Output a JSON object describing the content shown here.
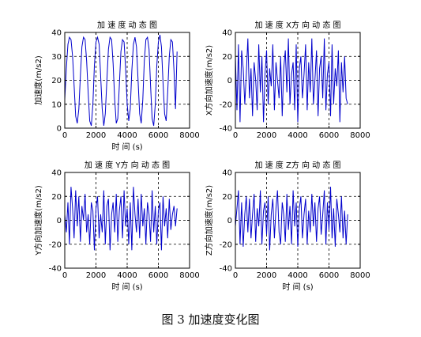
{
  "caption": "图 3  加速度变化图",
  "chart_data": [
    {
      "type": "line",
      "title": "加 速 度 动 态 图",
      "xlabel": "时 间 (s)",
      "ylabel": "加速度(m/s2)",
      "xlim": [
        0,
        8000
      ],
      "ylim": [
        0,
        40
      ],
      "xticks": [
        0,
        2000,
        4000,
        6000,
        8000
      ],
      "yticks": [
        0,
        10,
        20,
        30,
        40
      ],
      "grid": true,
      "line_color": "#0000cc",
      "series": [
        {
          "x": [
            0,
            100,
            200,
            300,
            400,
            500,
            600,
            700,
            800,
            900,
            1000,
            1100,
            1200,
            1300,
            1400,
            1500,
            1600,
            1700,
            1800,
            1900,
            2000,
            2100,
            2200,
            2300,
            2400,
            2500,
            2600,
            2700,
            2800,
            2900,
            3000,
            3100,
            3200,
            3300,
            3400,
            3500,
            3600,
            3700,
            3800,
            3900,
            4000,
            4100,
            4200,
            4300,
            4400,
            4500,
            4600,
            4700,
            4800,
            4900,
            5000,
            5100,
            5200,
            5300,
            5400,
            5500,
            5600,
            5700,
            5800,
            5900,
            6000,
            6100,
            6200,
            6300,
            6400,
            6500,
            6600,
            6700,
            6800,
            6900,
            7000,
            7100,
            7200
          ],
          "values": [
            12,
            25,
            35,
            38,
            37,
            30,
            18,
            5,
            2,
            8,
            22,
            34,
            38,
            37,
            28,
            15,
            3,
            1,
            10,
            26,
            36,
            38,
            35,
            22,
            8,
            1,
            6,
            20,
            33,
            38,
            37,
            27,
            12,
            2,
            4,
            18,
            32,
            37,
            36,
            25,
            10,
            3,
            8,
            24,
            35,
            38,
            34,
            20,
            6,
            2,
            12,
            28,
            37,
            38,
            33,
            18,
            4,
            1,
            10,
            26,
            36,
            39,
            34,
            19,
            6,
            3,
            15,
            30,
            37,
            36,
            24,
            8,
            32
          ]
        }
      ]
    },
    {
      "type": "line",
      "title": "加 速 度 X方 向 动 态 图",
      "xlabel": "",
      "ylabel": "X方向加速度(m/s2)",
      "xlim": [
        0,
        8000
      ],
      "ylim": [
        -40,
        40
      ],
      "xticks": [
        0,
        2000,
        4000,
        6000,
        8000
      ],
      "yticks": [
        -40,
        -20,
        0,
        20,
        40
      ],
      "grid": true,
      "line_color": "#0000cc",
      "series": [
        {
          "x": [
            0,
            100,
            200,
            300,
            400,
            500,
            600,
            700,
            800,
            900,
            1000,
            1100,
            1200,
            1300,
            1400,
            1500,
            1600,
            1700,
            1800,
            1900,
            2000,
            2100,
            2200,
            2300,
            2400,
            2500,
            2600,
            2700,
            2800,
            2900,
            3000,
            3100,
            3200,
            3300,
            3400,
            3500,
            3600,
            3700,
            3800,
            3900,
            4000,
            4100,
            4200,
            4300,
            4400,
            4500,
            4600,
            4700,
            4800,
            4900,
            5000,
            5100,
            5200,
            5300,
            5400,
            5500,
            5600,
            5700,
            5800,
            5900,
            6000,
            6100,
            6200,
            6300,
            6400,
            6500,
            6600,
            6700,
            6800,
            6900,
            7000,
            7100,
            7200
          ],
          "values": [
            20,
            -25,
            30,
            -35,
            25,
            10,
            -20,
            5,
            35,
            -15,
            10,
            -30,
            15,
            0,
            -25,
            30,
            -10,
            20,
            -35,
            5,
            25,
            -20,
            10,
            -5,
            30,
            -25,
            15,
            0,
            -15,
            20,
            -30,
            10,
            25,
            -10,
            35,
            -20,
            5,
            15,
            -25,
            30,
            -35,
            10,
            20,
            -15,
            5,
            30,
            -25,
            15,
            -10,
            35,
            -20,
            0,
            25,
            -30,
            10,
            20,
            -15,
            35,
            -25,
            5,
            15,
            -30,
            30,
            -20,
            10,
            -5,
            25,
            -35,
            15,
            -10,
            20,
            -15,
            -20
          ]
        }
      ]
    },
    {
      "type": "line",
      "title": "加 速 度 Y方 向 动 态 图",
      "xlabel": "时 间 (s)",
      "ylabel": "Y方向加速度(m/s2)",
      "xlim": [
        0,
        8000
      ],
      "ylim": [
        -40,
        40
      ],
      "xticks": [
        0,
        2000,
        4000,
        6000,
        8000
      ],
      "yticks": [
        -40,
        -20,
        0,
        20,
        40
      ],
      "grid": true,
      "line_color": "#0000cc",
      "series": [
        {
          "x": [
            0,
            100,
            200,
            300,
            400,
            500,
            600,
            700,
            800,
            900,
            1000,
            1100,
            1200,
            1300,
            1400,
            1500,
            1600,
            1700,
            1800,
            1900,
            2000,
            2100,
            2200,
            2300,
            2400,
            2500,
            2600,
            2700,
            2800,
            2900,
            3000,
            3100,
            3200,
            3300,
            3400,
            3500,
            3600,
            3700,
            3800,
            3900,
            4000,
            4100,
            4200,
            4300,
            4400,
            4500,
            4600,
            4700,
            4800,
            4900,
            5000,
            5100,
            5200,
            5300,
            5400,
            5500,
            5600,
            5700,
            5800,
            5900,
            6000,
            6100,
            6200,
            6300,
            6400,
            6500,
            6600,
            6700,
            6800,
            6900,
            7000,
            7100,
            7200
          ],
          "values": [
            5,
            -10,
            15,
            -20,
            28,
            10,
            -15,
            25,
            -5,
            20,
            -18,
            12,
            0,
            22,
            -10,
            5,
            -20,
            15,
            8,
            -25,
            10,
            20,
            -15,
            5,
            -10,
            25,
            -20,
            12,
            18,
            -25,
            5,
            15,
            -10,
            22,
            -18,
            8,
            20,
            -15,
            25,
            -5,
            10,
            -20,
            15,
            -25,
            28,
            5,
            -10,
            18,
            -15,
            22,
            -5,
            10,
            -20,
            15,
            5,
            -18,
            25,
            -10,
            12,
            -20,
            8,
            15,
            -25,
            20,
            -5,
            10,
            -15,
            18,
            -8,
            5,
            12,
            -5,
            10
          ]
        }
      ]
    },
    {
      "type": "line",
      "title": "加 速 度 Z方 向 动 态 图",
      "xlabel": "时 间 (s)",
      "ylabel": "Z方向加速度(m/s2)",
      "xlim": [
        0,
        8000
      ],
      "ylim": [
        -40,
        40
      ],
      "xticks": [
        0,
        2000,
        4000,
        6000,
        8000
      ],
      "yticks": [
        -40,
        -20,
        0,
        20,
        40
      ],
      "grid": true,
      "line_color": "#0000cc",
      "series": [
        {
          "x": [
            0,
            100,
            200,
            300,
            400,
            500,
            600,
            700,
            800,
            900,
            1000,
            1100,
            1200,
            1300,
            1400,
            1500,
            1600,
            1700,
            1800,
            1900,
            2000,
            2100,
            2200,
            2300,
            2400,
            2500,
            2600,
            2700,
            2800,
            2900,
            3000,
            3100,
            3200,
            3300,
            3400,
            3500,
            3600,
            3700,
            3800,
            3900,
            4000,
            4100,
            4200,
            4300,
            4400,
            4500,
            4600,
            4700,
            4800,
            4900,
            5000,
            5100,
            5200,
            5300,
            5400,
            5500,
            5600,
            5700,
            5800,
            5900,
            6000,
            6100,
            6200,
            6300,
            6400,
            6500,
            6600,
            6700,
            6800,
            6900,
            7000,
            7100,
            7200
          ],
          "values": [
            -5,
            10,
            25,
            -20,
            15,
            -22,
            5,
            20,
            -10,
            18,
            -15,
            5,
            22,
            -18,
            10,
            -5,
            25,
            -20,
            8,
            15,
            -12,
            20,
            -25,
            5,
            18,
            -15,
            10,
            25,
            -10,
            -20,
            15,
            5,
            -18,
            22,
            -8,
            12,
            -20,
            25,
            -5,
            15,
            -22,
            10,
            20,
            -15,
            5,
            18,
            -20,
            8,
            -10,
            22,
            -5,
            15,
            -18,
            10,
            20,
            -12,
            5,
            25,
            -20,
            15,
            -8,
            28,
            -15,
            10,
            -22,
            18,
            5,
            -10,
            20,
            -15,
            8,
            -20,
            5
          ]
        }
      ]
    }
  ]
}
